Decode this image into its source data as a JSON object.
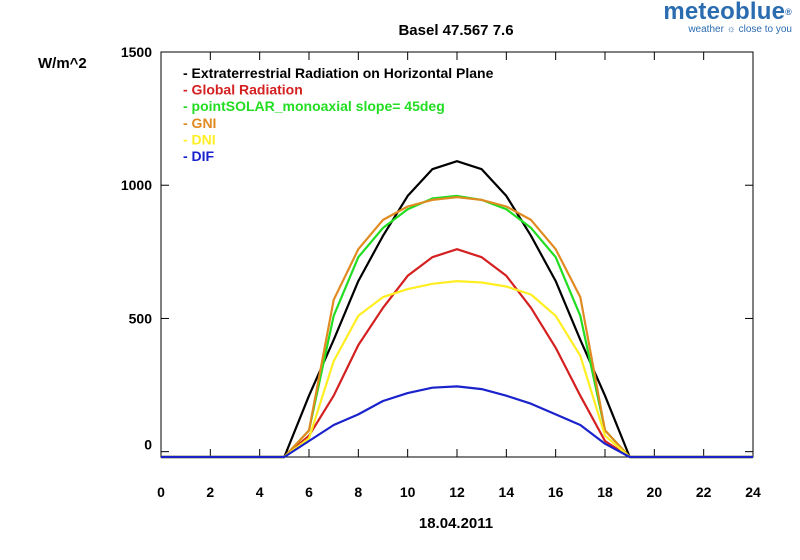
{
  "brand": {
    "name": "meteoblue",
    "reg": "®",
    "tagline": "weather ☼ close to you",
    "color": "#2b6cb0"
  },
  "chart_data": {
    "type": "line",
    "title": "Basel 47.567 7.6",
    "xlabel": "18.04.2011",
    "ylabel": "W/m^2",
    "xlim": [
      0,
      24
    ],
    "ylim": [
      -20,
      1500
    ],
    "xticks": [
      0,
      2,
      4,
      6,
      8,
      10,
      12,
      14,
      16,
      18,
      20,
      22,
      24
    ],
    "yticks": [
      0,
      500,
      1000,
      1500
    ],
    "grid": false,
    "legend_position": "top-left",
    "series": [
      {
        "name": "Extraterrestrial Radiation on Horizontal Plane",
        "color": "#000000",
        "x": [
          0,
          1,
          2,
          3,
          4,
          5,
          6,
          7,
          8,
          9,
          10,
          11,
          12,
          13,
          14,
          15,
          16,
          17,
          18,
          19,
          20,
          21,
          22,
          23,
          24
        ],
        "y": [
          -20,
          -20,
          -20,
          -20,
          -20,
          -20,
          210,
          420,
          640,
          810,
          960,
          1060,
          1090,
          1060,
          960,
          810,
          640,
          420,
          210,
          -20,
          -20,
          -20,
          -20,
          -20,
          -20
        ]
      },
      {
        "name": "Global Radiation",
        "color": "#d42020",
        "x": [
          0,
          1,
          2,
          3,
          4,
          5,
          6,
          7,
          8,
          9,
          10,
          11,
          12,
          13,
          14,
          15,
          16,
          17,
          18,
          19,
          20,
          21,
          22,
          23,
          24
        ],
        "y": [
          -20,
          -20,
          -20,
          -20,
          -20,
          -20,
          60,
          210,
          400,
          540,
          660,
          730,
          760,
          730,
          660,
          540,
          390,
          210,
          40,
          -20,
          -20,
          -20,
          -20,
          -20,
          -20
        ]
      },
      {
        "name": "pointSOLAR_monoaxial slope= 45deg",
        "color": "#22dd22",
        "x": [
          0,
          1,
          2,
          3,
          4,
          5,
          6,
          7,
          8,
          9,
          10,
          11,
          12,
          13,
          14,
          15,
          16,
          17,
          18,
          19,
          20,
          21,
          22,
          23,
          24
        ],
        "y": [
          -20,
          -20,
          -20,
          -20,
          -20,
          -20,
          80,
          510,
          730,
          840,
          910,
          950,
          960,
          945,
          910,
          840,
          730,
          510,
          80,
          -20,
          -20,
          -20,
          -20,
          -20,
          -20
        ]
      },
      {
        "name": "GNI",
        "color": "#e08a20",
        "x": [
          0,
          1,
          2,
          3,
          4,
          5,
          6,
          7,
          8,
          9,
          10,
          11,
          12,
          13,
          14,
          15,
          16,
          17,
          18,
          19,
          20,
          21,
          22,
          23,
          24
        ],
        "y": [
          -20,
          -20,
          -20,
          -20,
          -20,
          -20,
          80,
          570,
          760,
          870,
          920,
          945,
          955,
          945,
          920,
          870,
          760,
          580,
          80,
          -20,
          -20,
          -20,
          -20,
          -20,
          -20
        ]
      },
      {
        "name": "DNI",
        "color": "#ffee22",
        "x": [
          0,
          1,
          2,
          3,
          4,
          5,
          6,
          7,
          8,
          9,
          10,
          11,
          12,
          13,
          14,
          15,
          16,
          17,
          18,
          19,
          20,
          21,
          22,
          23,
          24
        ],
        "y": [
          -20,
          -20,
          -20,
          -20,
          -20,
          -20,
          50,
          340,
          510,
          580,
          610,
          630,
          640,
          635,
          620,
          590,
          510,
          360,
          60,
          -20,
          -20,
          -20,
          -20,
          -20,
          -20
        ]
      },
      {
        "name": "DIF",
        "color": "#1a22cc",
        "x": [
          0,
          1,
          2,
          3,
          4,
          5,
          6,
          7,
          8,
          9,
          10,
          11,
          12,
          13,
          14,
          15,
          16,
          17,
          18,
          19,
          20,
          21,
          22,
          23,
          24
        ],
        "y": [
          -20,
          -20,
          -20,
          -20,
          -20,
          -20,
          40,
          100,
          140,
          190,
          220,
          240,
          245,
          235,
          210,
          180,
          140,
          100,
          30,
          -20,
          -20,
          -20,
          -20,
          -20,
          -20
        ]
      }
    ]
  }
}
